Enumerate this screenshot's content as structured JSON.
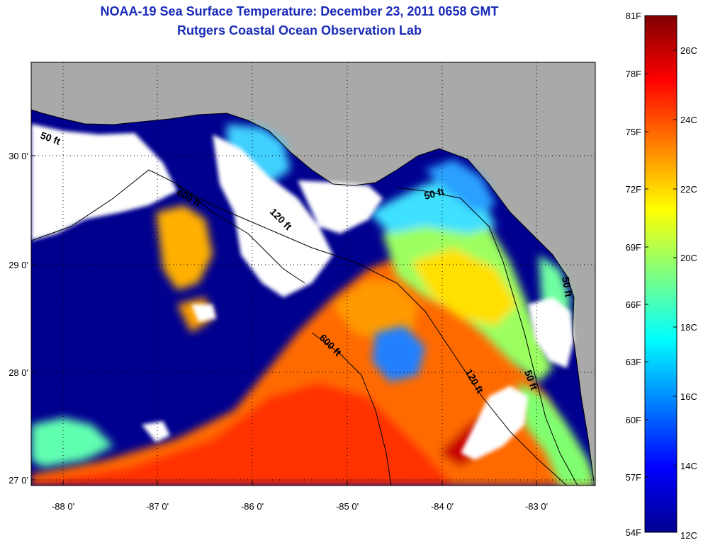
{
  "title": "NOAA-19 Sea Surface Temperature:  December 23, 2011 0658 GMT",
  "subtitle": "Rutgers Coastal Ocean Observation Lab",
  "lat_ticks": [
    "30 0'",
    "29 0'",
    "28 0'",
    "27 0'"
  ],
  "lon_ticks": [
    "-88 0'",
    "-87 0'",
    "-86 0'",
    "-85 0'",
    "-84 0'",
    "-83 0'"
  ],
  "contour_labels": [
    "600 ft",
    "120 ft",
    "50 ft",
    "600 ft",
    "120 ft",
    "50 ft",
    "50 ft",
    "50 ft"
  ],
  "colorbar": {
    "fahrenheit": [
      "81F",
      "78F",
      "75F",
      "72F",
      "69F",
      "66F",
      "63F",
      "60F",
      "57F",
      "54F"
    ],
    "celsius": [
      "26C",
      "24C",
      "22C",
      "20C",
      "18C",
      "16C",
      "14C",
      "12C"
    ],
    "colors": [
      "#00008f",
      "#0000ff",
      "#0080ff",
      "#00ffff",
      "#80ff80",
      "#ffff00",
      "#ff8000",
      "#ff0000",
      "#800000"
    ]
  },
  "colors": {
    "land": "#a9a9a9",
    "cloud": "#ffffff",
    "cold_water": "#00008f",
    "title": "#1a2bb8"
  }
}
